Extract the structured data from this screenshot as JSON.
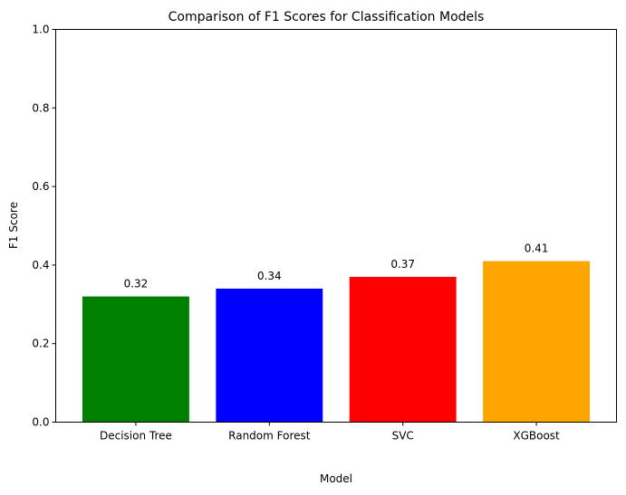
{
  "chart_data": {
    "type": "bar",
    "title": "Comparison of F1 Scores for Classification Models",
    "xlabel": "Model",
    "ylabel": "F1 Score",
    "categories": [
      "Decision Tree",
      "Random Forest",
      "SVC",
      "XGBoost"
    ],
    "values": [
      0.32,
      0.34,
      0.37,
      0.41
    ],
    "data_labels": [
      "0.32",
      "0.34",
      "0.37",
      "0.41"
    ],
    "colors": [
      "#008000",
      "#0000ff",
      "#ff0000",
      "#ffa500"
    ],
    "ylim": [
      0,
      1
    ],
    "yticks": [
      0.0,
      0.2,
      0.4,
      0.6,
      0.8,
      1.0
    ],
    "ytick_labels": [
      "0.0",
      "0.2",
      "0.4",
      "0.6",
      "0.8",
      "1.0"
    ],
    "grid": false,
    "legend": "none"
  }
}
